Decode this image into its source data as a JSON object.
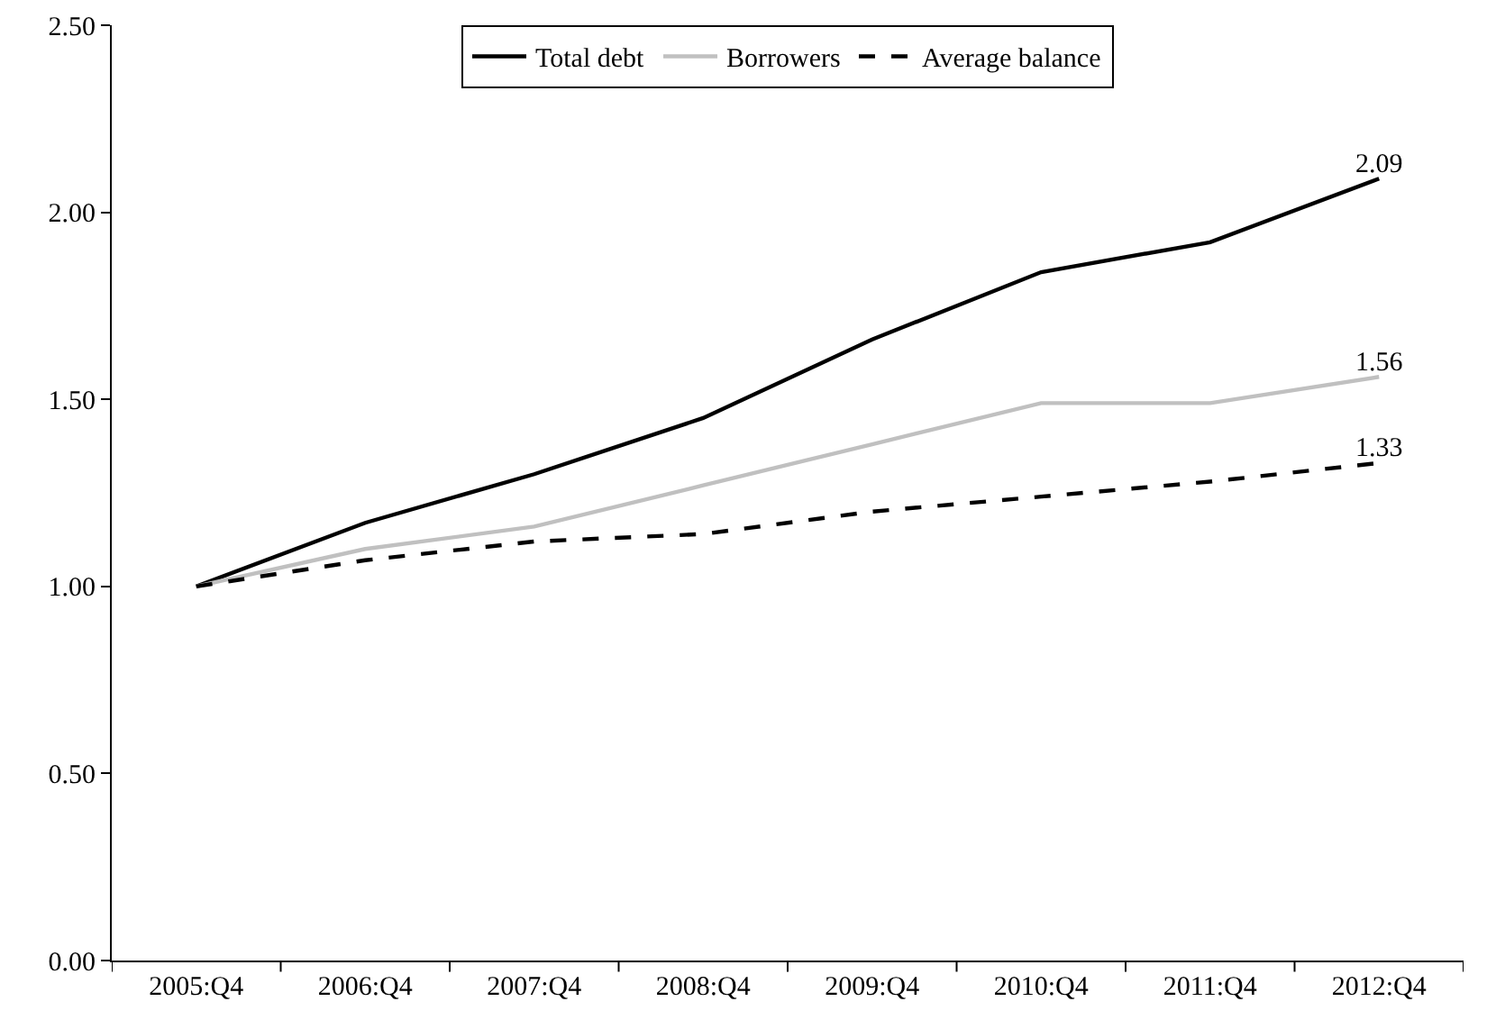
{
  "chart_data": {
    "type": "line",
    "categories": [
      "2005:Q4",
      "2006:Q4",
      "2007:Q4",
      "2008:Q4",
      "2009:Q4",
      "2010:Q4",
      "2011:Q4",
      "2012:Q4"
    ],
    "series": [
      {
        "name": "Total debt",
        "color": "#000000",
        "line_style": "solid",
        "values": [
          1.0,
          1.17,
          1.3,
          1.45,
          1.66,
          1.84,
          1.92,
          2.09
        ],
        "value_labels": [
          null,
          null,
          null,
          null,
          null,
          null,
          null,
          "2.09"
        ]
      },
      {
        "name": "Borrowers",
        "color": "#c0c0c0",
        "line_style": "solid",
        "values": [
          1.0,
          1.1,
          1.16,
          1.27,
          1.38,
          1.49,
          1.49,
          1.56
        ],
        "value_labels": [
          null,
          null,
          null,
          null,
          null,
          null,
          null,
          "1.56"
        ]
      },
      {
        "name": "Average balance",
        "color": "#000000",
        "line_style": "dashed",
        "values": [
          1.0,
          1.07,
          1.12,
          1.14,
          1.2,
          1.24,
          1.28,
          1.33
        ],
        "value_labels": [
          null,
          null,
          null,
          null,
          null,
          null,
          null,
          "1.33"
        ]
      }
    ],
    "ylim": [
      0,
      2.5
    ],
    "yticks": [
      {
        "value": 0,
        "label": "0.00"
      },
      {
        "value": 0.5,
        "label": "0.50"
      },
      {
        "value": 1,
        "label": "1.00"
      },
      {
        "value": 1.5,
        "label": "1.50"
      },
      {
        "value": 2,
        "label": "2.00"
      },
      {
        "value": 2.5,
        "label": "2.50"
      }
    ],
    "grid": false,
    "legend": "top",
    "marker": "none"
  }
}
